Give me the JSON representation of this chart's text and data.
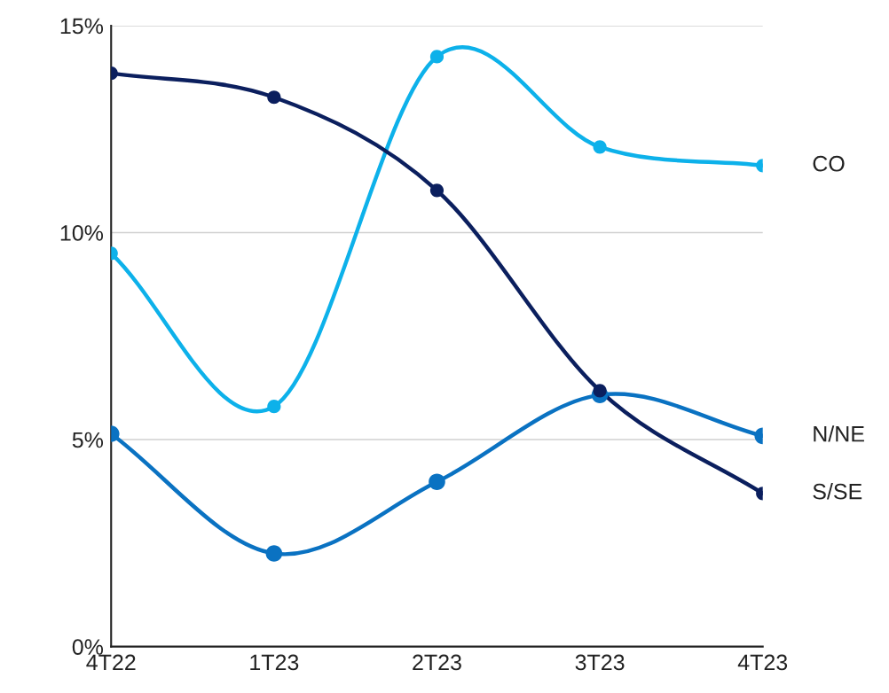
{
  "chart_data": {
    "type": "line",
    "categories": [
      "4T22",
      "1T23",
      "2T23",
      "3T23",
      "4T23"
    ],
    "series": [
      {
        "name": "CO",
        "color": "#0db1ea",
        "values": [
          9.5,
          5.8,
          14.25,
          12.07,
          11.62
        ]
      },
      {
        "name": "N/NE",
        "color": "#0a72c2",
        "values": [
          5.14,
          2.25,
          3.98,
          6.08,
          5.09
        ]
      },
      {
        "name": "S/SE",
        "color": "#0b1f5e",
        "values": [
          13.85,
          13.27,
          11.02,
          6.18,
          3.7
        ]
      }
    ],
    "ylim": [
      0,
      15
    ],
    "yticks": [
      {
        "value": 0,
        "label": "0%"
      },
      {
        "value": 5,
        "label": "5%"
      },
      {
        "value": 10,
        "label": "10%"
      },
      {
        "value": 15,
        "label": "15%"
      }
    ],
    "grid": "y",
    "legend": false,
    "marker": "circle",
    "line_style": "solid"
  }
}
